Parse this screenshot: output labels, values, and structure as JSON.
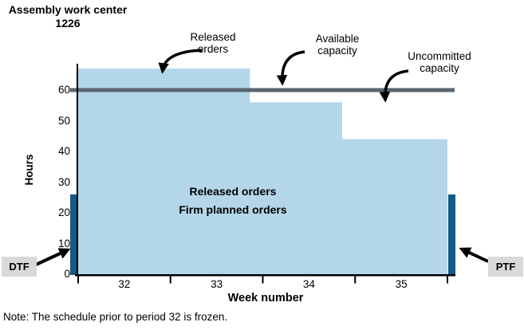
{
  "title": {
    "line1": "Assembly work center",
    "line2": "1226"
  },
  "axis": {
    "ylabel": "Hours",
    "xlabel": "Week number"
  },
  "labels": {
    "released_orders_annotation": [
      "Released",
      "orders"
    ],
    "available_capacity_annotation": [
      "Available",
      "capacity"
    ],
    "uncommitted_capacity_annotation": [
      "Uncommitted",
      "capacity"
    ],
    "area_label_line1": "Released orders",
    "area_label_line2": "Firm planned orders",
    "dtf": "DTF",
    "ptf": "PTF"
  },
  "note": "Note: The schedule prior to period 32 is frozen.",
  "colors": {
    "area_fill": "#B3D6E9",
    "capacity_line": "#5A6670",
    "time_fence_bar": "#125A87",
    "fence_label_box": "#D9D9D9",
    "axis": "#000000"
  },
  "chart_data": {
    "type": "area",
    "subtype": "step",
    "title": "Assembly work center 1226",
    "xlabel": "Week number",
    "ylabel": "Hours",
    "x_domain": [
      32,
      36
    ],
    "x_tick_labels": [
      "32",
      "33",
      "34",
      "35"
    ],
    "y_ticks": [
      0,
      10,
      20,
      30,
      40,
      50,
      60
    ],
    "ylim": [
      0,
      70
    ],
    "grid": false,
    "area_series": {
      "name": "Released orders / Firm planned orders",
      "color": "#B3D6E9",
      "steps": [
        {
          "x_start": 32.0,
          "x_end": 33.86,
          "hours": 67
        },
        {
          "x_start": 33.86,
          "x_end": 34.86,
          "hours": 56
        },
        {
          "x_start": 34.86,
          "x_end": 36.0,
          "hours": 44
        }
      ]
    },
    "capacity_line": {
      "name": "Available capacity",
      "hours": 60,
      "color": "#5A6670"
    },
    "time_fences": {
      "color": "#125A87",
      "hours": 26,
      "dtf": {
        "label": "DTF",
        "position_week": 32.0
      },
      "ptf": {
        "label": "PTF",
        "position_week": 36.0
      }
    },
    "annotations": [
      "Released orders",
      "Available capacity",
      "Uncommitted capacity"
    ]
  }
}
